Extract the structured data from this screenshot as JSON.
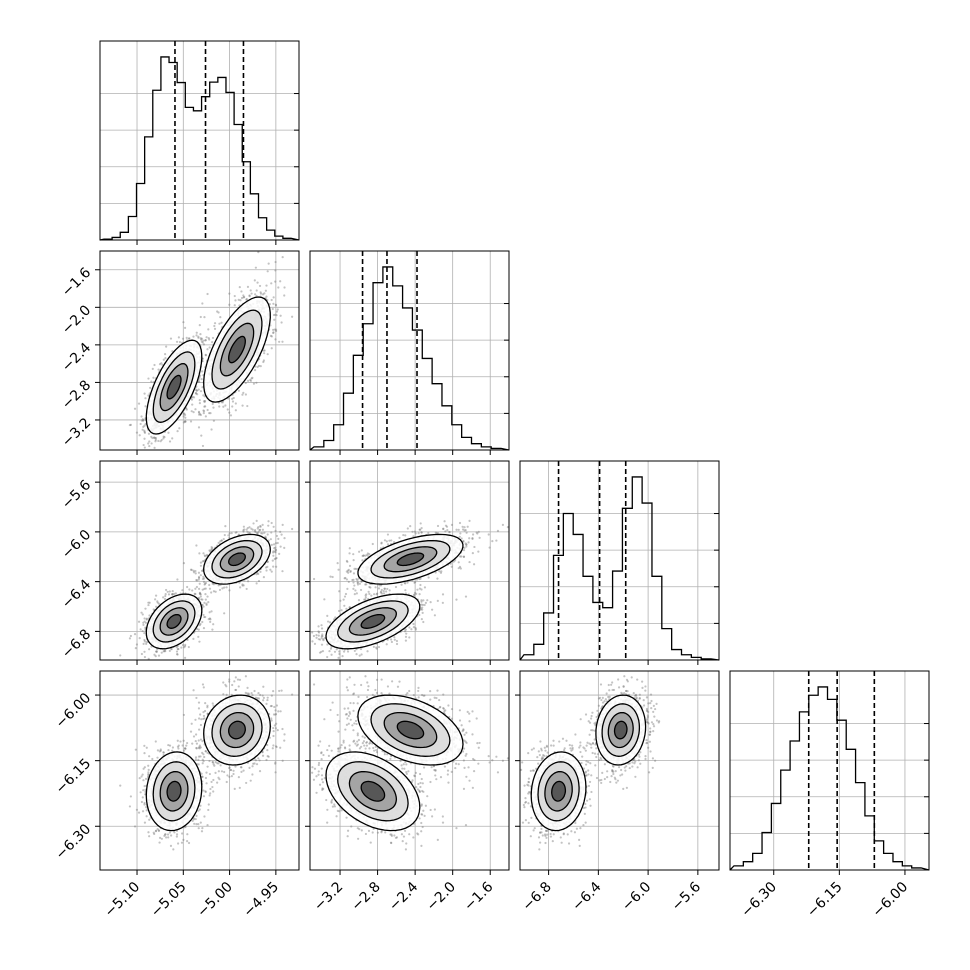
{
  "chart_data": {
    "type": "corner",
    "parameters": [
      {
        "id": "p0",
        "range": [
          -5.14,
          -4.925
        ],
        "ticks": [
          -5.1,
          -5.05,
          -5.0,
          -4.95
        ],
        "tick_labels": [
          "−5.10",
          "−5.05",
          "−5.00",
          "−4.95"
        ],
        "quantiles": [
          -5.059,
          -5.026,
          -4.985
        ]
      },
      {
        "id": "p1",
        "range": [
          -3.52,
          -1.4
        ],
        "ticks": [
          -3.2,
          -2.8,
          -2.4,
          -2.0,
          -1.6
        ],
        "tick_labels": [
          "−3.2",
          "−2.8",
          "−2.4",
          "−2.0",
          "−1.6"
        ],
        "quantiles": [
          -2.96,
          -2.7,
          -2.38
        ]
      },
      {
        "id": "p2",
        "range": [
          -7.03,
          -5.43
        ],
        "ticks": [
          -6.8,
          -6.4,
          -6.0,
          -5.6
        ],
        "tick_labels": [
          "−6.8",
          "−6.4",
          "−6.0",
          "−5.6"
        ],
        "quantiles": [
          -6.72,
          -6.39,
          -6.18
        ]
      },
      {
        "id": "p3",
        "range": [
          -6.4,
          -5.945
        ],
        "ticks": [
          -6.3,
          -6.15,
          -6.0
        ],
        "tick_labels": [
          "−6.30",
          "−6.15",
          "−6.00"
        ],
        "quantiles": [
          -6.22,
          -6.155,
          -6.07
        ]
      }
    ],
    "histograms": {
      "p0": [
        0.2,
        0.6,
        1.8,
        5.5,
        13.2,
        24.1,
        35.0,
        42.8,
        41.5,
        36.8,
        31.0,
        30.2,
        33.5,
        36.9,
        38.0,
        34.5,
        27.0,
        18.3,
        10.8,
        5.2,
        2.3,
        0.9,
        0.4
      ],
      "p1": [
        1,
        3,
        8,
        18,
        30,
        40,
        53,
        58,
        52,
        45,
        38,
        29,
        21,
        14,
        8,
        4,
        2,
        1,
        0.5
      ],
      "p2": [
        1,
        3,
        9,
        20,
        28,
        24,
        16,
        11,
        10,
        17,
        29,
        35,
        30,
        16,
        6,
        2,
        1,
        0.5,
        0.2
      ],
      "p3": [
        1,
        2,
        4,
        9,
        16,
        24,
        31,
        38,
        42,
        44,
        41,
        36,
        29,
        21,
        13,
        7,
        4,
        2,
        1,
        0.5
      ]
    },
    "components": [
      {
        "weight": 0.5,
        "mean": [
          -5.06,
          -2.85,
          -6.72,
          -6.22
        ],
        "sd": [
          0.015,
          0.25,
          0.11,
          0.045
        ],
        "corr": [
          [
            1,
            0.65,
            0.4,
            0.1
          ],
          [
            0.65,
            1,
            0.55,
            -0.4
          ],
          [
            0.4,
            0.55,
            1,
            0.1
          ],
          [
            0.1,
            -0.4,
            0.1,
            1
          ]
        ]
      },
      {
        "weight": 0.5,
        "mean": [
          -4.992,
          -2.45,
          -6.22,
          -6.08
        ],
        "sd": [
          0.018,
          0.28,
          0.1,
          0.04
        ],
        "corr": [
          [
            1,
            0.65,
            0.4,
            0.1
          ],
          [
            0.65,
            1,
            0.55,
            -0.4
          ],
          [
            0.4,
            0.55,
            1,
            0.1
          ],
          [
            0.1,
            -0.4,
            0.1,
            1
          ]
        ]
      }
    ],
    "contour_levels_sigma": [
      0.5,
      1.0,
      1.5,
      2.0
    ],
    "grid": true,
    "title": "",
    "xlabel": "",
    "ylabel": ""
  }
}
